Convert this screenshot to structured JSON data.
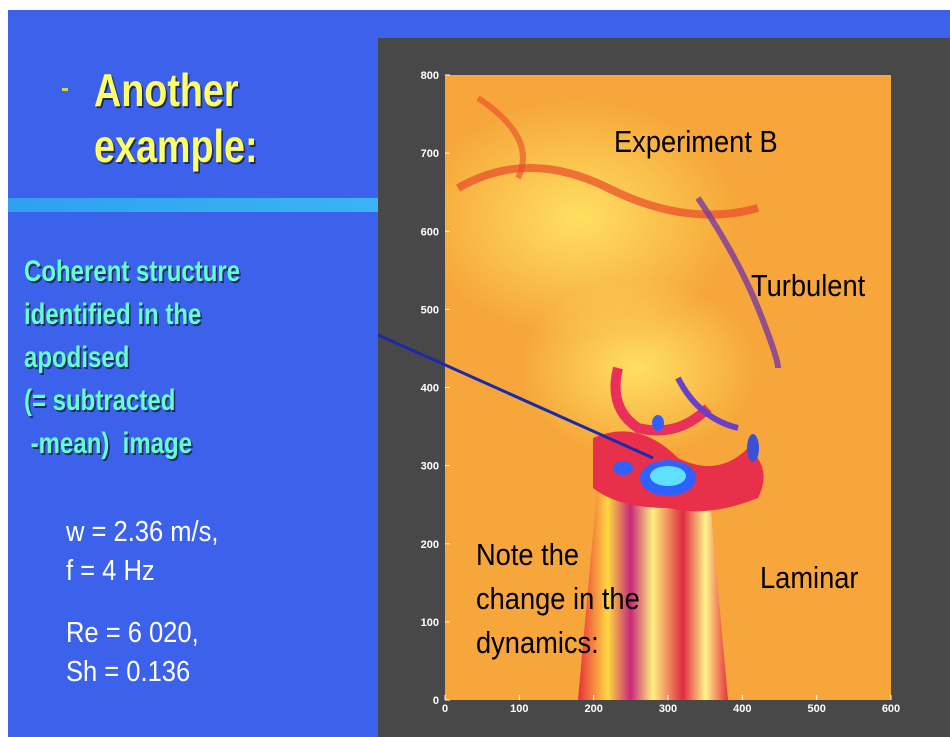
{
  "slide": {
    "title": "Another example:",
    "annotation_lines": [
      "Coherent structure",
      "identified in the",
      "apodised",
      "(= subtracted",
      " -mean)  image"
    ],
    "parameters": [
      "w = 2.36 m/s,",
      "f = 4 Hz",
      "Re = 6 020,",
      "Sh = 0.136"
    ],
    "figure": {
      "labels": {
        "experiment": "Experiment B",
        "turbulent": "Turbulent",
        "laminar": "Laminar",
        "note_lines": [
          "Note the",
          "change in the",
          "dynamics:"
        ]
      },
      "xlim": [
        0,
        600
      ],
      "xticks": [
        0,
        100,
        200,
        300,
        400,
        500,
        600
      ],
      "ylim": [
        0,
        800
      ],
      "yticks": [
        0,
        100,
        200,
        300,
        400,
        500,
        600,
        700,
        800
      ]
    }
  }
}
